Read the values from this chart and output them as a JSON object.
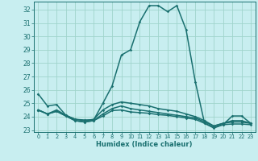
{
  "xlabel": "Humidex (Indice chaleur)",
  "bg_color": "#c8eef0",
  "grid_color": "#a0d4cc",
  "line_color": "#1a7070",
  "xlim": [
    -0.5,
    23.5
  ],
  "ylim": [
    22.85,
    32.6
  ],
  "yticks": [
    23,
    24,
    25,
    26,
    27,
    28,
    29,
    30,
    31,
    32
  ],
  "xticks": [
    0,
    1,
    2,
    3,
    4,
    5,
    6,
    7,
    8,
    9,
    10,
    11,
    12,
    13,
    14,
    15,
    16,
    17,
    18,
    19,
    20,
    21,
    22,
    23
  ],
  "lines": [
    [
      25.7,
      24.8,
      24.9,
      24.1,
      23.8,
      23.75,
      23.75,
      25.0,
      26.3,
      28.6,
      29.0,
      31.1,
      32.3,
      32.3,
      31.85,
      32.3,
      30.5,
      26.6,
      23.5,
      23.15,
      23.4,
      24.05,
      24.05,
      23.5
    ],
    [
      24.5,
      24.2,
      24.4,
      24.05,
      23.7,
      23.6,
      23.7,
      24.05,
      24.45,
      24.5,
      24.35,
      24.3,
      24.25,
      24.15,
      24.1,
      24.0,
      23.9,
      23.8,
      23.5,
      23.2,
      23.4,
      23.45,
      23.45,
      23.4
    ],
    [
      24.5,
      24.2,
      24.4,
      24.05,
      23.7,
      23.6,
      23.7,
      24.2,
      24.6,
      24.8,
      24.6,
      24.5,
      24.4,
      24.3,
      24.2,
      24.1,
      24.0,
      23.9,
      23.6,
      23.3,
      23.5,
      23.6,
      23.6,
      23.5
    ],
    [
      24.5,
      24.2,
      24.5,
      24.1,
      23.8,
      23.7,
      23.8,
      24.5,
      24.9,
      25.1,
      25.0,
      24.9,
      24.8,
      24.6,
      24.5,
      24.4,
      24.2,
      24.0,
      23.7,
      23.3,
      23.5,
      23.7,
      23.7,
      23.5
    ]
  ]
}
